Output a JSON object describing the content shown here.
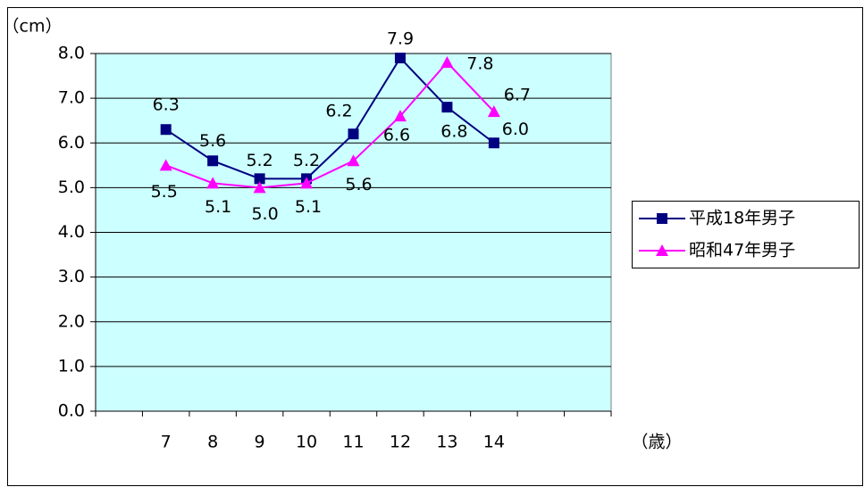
{
  "chart_data": {
    "type": "line",
    "y_label": "（cm）",
    "x_label": "（歳）",
    "categories": [
      null,
      "7",
      "8",
      "9",
      "10",
      "11",
      "12",
      "13",
      "14",
      null,
      null
    ],
    "series": [
      {
        "name": "平成18年男子",
        "color": "#000080",
        "marker": "square",
        "values": [
          null,
          6.3,
          5.6,
          5.2,
          5.2,
          6.2,
          7.9,
          6.8,
          6.0,
          null,
          null
        ],
        "value_labels": [
          null,
          "6.3",
          "5.6",
          "5.2",
          "5.2",
          "6.2",
          "7.9",
          "6.8",
          "6.0",
          null,
          null
        ]
      },
      {
        "name": "昭和47年男子",
        "color": "#ff00ff",
        "marker": "triangle",
        "values": [
          null,
          5.5,
          5.1,
          5.0,
          5.1,
          5.6,
          6.6,
          7.8,
          6.7,
          null,
          null
        ],
        "value_labels": [
          null,
          "5.5",
          "5.1",
          "5.0",
          "5.1",
          "5.6",
          "6.6",
          "7.8",
          "6.7",
          null,
          null
        ]
      }
    ],
    "ylim": [
      0,
      8
    ],
    "yticks": [
      {
        "value": 0,
        "label": "0.0"
      },
      {
        "value": 1,
        "label": "1.0"
      },
      {
        "value": 2,
        "label": "2.0"
      },
      {
        "value": 3,
        "label": "3.0"
      },
      {
        "value": 4,
        "label": "4.0"
      },
      {
        "value": 5,
        "label": "5.0"
      },
      {
        "value": 6,
        "label": "6.0"
      },
      {
        "value": 7,
        "label": "7.0"
      },
      {
        "value": 8,
        "label": "8.0"
      }
    ],
    "grid": true,
    "plot_background": "#ccffff",
    "legend": "right"
  }
}
